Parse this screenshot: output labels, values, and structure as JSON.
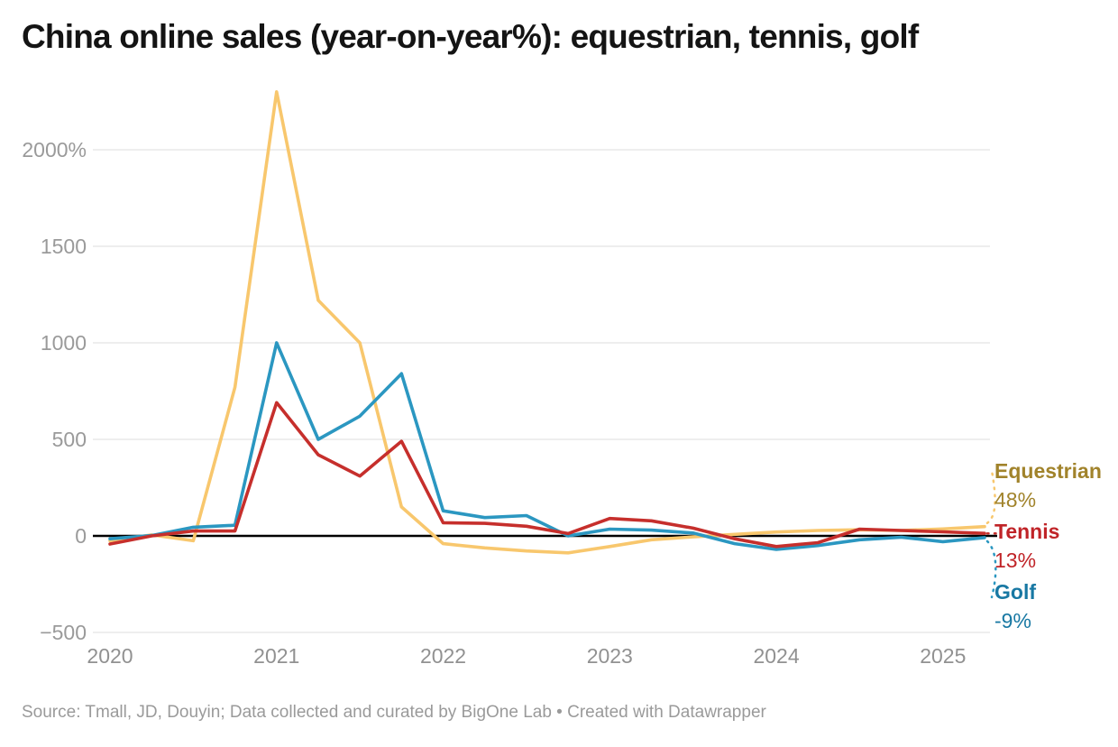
{
  "title": "China online sales (year-on-year%): equestrian, tennis, golf",
  "footer": "Source: Tmall, JD, Douyin; Data collected and curated by BigOne Lab • Created with Datawrapper",
  "chart_data": {
    "type": "line",
    "title": "China online sales (year-on-year%): equestrian, tennis, golf",
    "x_unit": "quarter",
    "categories": [
      "2020Q1",
      "2020Q2",
      "2020Q3",
      "2020Q4",
      "2021Q1",
      "2021Q2",
      "2021Q3",
      "2021Q4",
      "2022Q1",
      "2022Q2",
      "2022Q3",
      "2022Q4",
      "2023Q1",
      "2023Q2",
      "2023Q3",
      "2023Q4",
      "2024Q1",
      "2024Q2",
      "2024Q3",
      "2024Q4",
      "2025Q1",
      "2025Q2"
    ],
    "series": [
      {
        "name": "Equestrian",
        "end_label": "48%",
        "line_color": "#f8c76d",
        "label_color": "#a1832b",
        "values": [
          -25,
          5,
          -25,
          770,
          2300,
          1220,
          1000,
          150,
          -40,
          -62,
          -78,
          -88,
          -55,
          -20,
          -5,
          8,
          20,
          28,
          32,
          28,
          36,
          48
        ]
      },
      {
        "name": "Tennis",
        "end_label": "13%",
        "line_color": "#c62f2c",
        "label_color": "#c02428",
        "values": [
          -42,
          0,
          25,
          25,
          690,
          420,
          310,
          490,
          68,
          65,
          50,
          12,
          90,
          78,
          40,
          -15,
          -55,
          -35,
          35,
          28,
          21,
          13
        ]
      },
      {
        "name": "Golf",
        "end_label": "-9%",
        "line_color": "#2b97c1",
        "label_color": "#1878a3",
        "values": [
          -15,
          2,
          45,
          55,
          1000,
          500,
          620,
          840,
          130,
          95,
          105,
          0,
          35,
          30,
          15,
          -40,
          -70,
          -50,
          -20,
          -7,
          -30,
          -9
        ]
      }
    ],
    "yticks": [
      {
        "label": "2000%",
        "value": 2000
      },
      {
        "label": "1500",
        "value": 1500
      },
      {
        "label": "1000",
        "value": 1000
      },
      {
        "label": "500",
        "value": 500
      },
      {
        "label": "0",
        "value": 0
      },
      {
        "label": "−500",
        "value": -500
      }
    ],
    "xticks": [
      {
        "label": "2020",
        "index": 0
      },
      {
        "label": "2021",
        "index": 4
      },
      {
        "label": "2022",
        "index": 8
      },
      {
        "label": "2023",
        "index": 12
      },
      {
        "label": "2024",
        "index": 16
      },
      {
        "label": "2025",
        "index": 20
      }
    ],
    "ylim": [
      -500,
      2300
    ],
    "grid": true,
    "legend_position": "right",
    "zero_baseline": true
  }
}
